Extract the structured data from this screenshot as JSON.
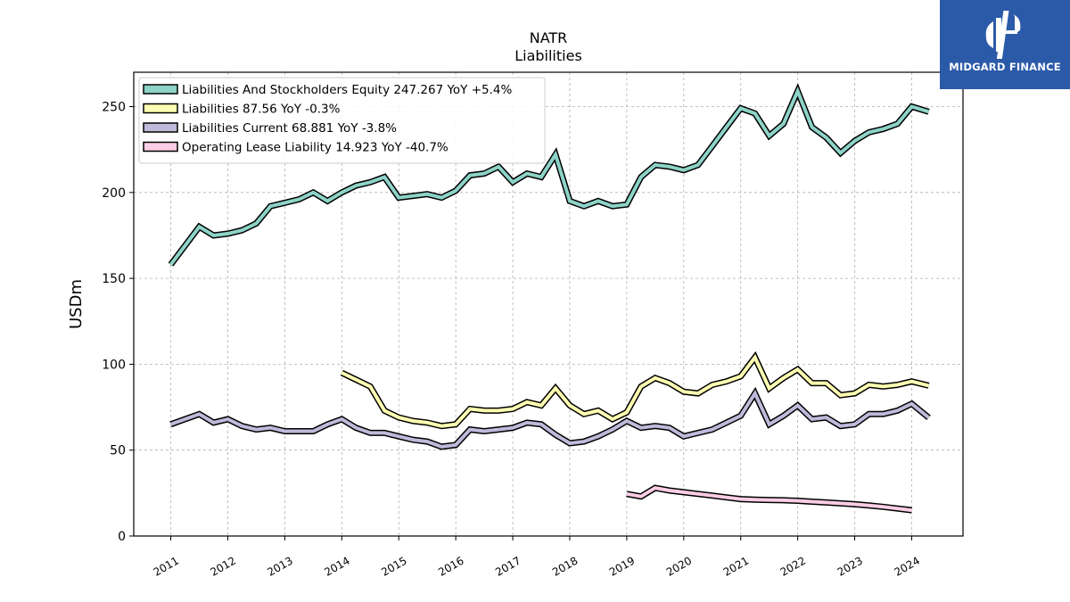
{
  "brand": {
    "name": "MIDGARD FINANCE",
    "logo_icon": "midgard-finance-logo-icon",
    "color": "#2b5aa8"
  },
  "chart_data": {
    "type": "line",
    "title": "NATR",
    "subtitle": "Liabilities",
    "ylabel": "USDm",
    "xlabel": "",
    "ylim": [
      0,
      270
    ],
    "xlim": [
      2010.35,
      2024.9
    ],
    "yticks": [
      0,
      50,
      100,
      150,
      200,
      250
    ],
    "xticks": [
      "2011",
      "2012",
      "2013",
      "2014",
      "2015",
      "2016",
      "2017",
      "2018",
      "2019",
      "2020",
      "2021",
      "2022",
      "2023",
      "2024"
    ],
    "grid": true,
    "legend_position": "top-left",
    "series": [
      {
        "name": "Liabilities And Stockholders Equity  247.267 YoY +5.4%",
        "color": "#8dd3c7",
        "x": [
          2011.0,
          2011.25,
          2011.5,
          2011.75,
          2012.0,
          2012.25,
          2012.5,
          2012.75,
          2013.0,
          2013.25,
          2013.5,
          2013.75,
          2014.0,
          2014.25,
          2014.5,
          2014.75,
          2015.0,
          2015.25,
          2015.5,
          2015.75,
          2016.0,
          2016.25,
          2016.5,
          2016.75,
          2017.0,
          2017.25,
          2017.5,
          2017.75,
          2018.0,
          2018.25,
          2018.5,
          2018.75,
          2019.0,
          2019.25,
          2019.5,
          2019.75,
          2020.0,
          2020.25,
          2020.5,
          2020.75,
          2021.0,
          2021.25,
          2021.5,
          2021.75,
          2022.0,
          2022.25,
          2022.5,
          2022.75,
          2023.0,
          2023.25,
          2023.5,
          2023.75,
          2024.0,
          2024.3
        ],
        "y": [
          158,
          169,
          180,
          175,
          176,
          178,
          182,
          192,
          194,
          196,
          200,
          195,
          200,
          204,
          206,
          209,
          197,
          198,
          199,
          197,
          201,
          210,
          211,
          215,
          206,
          211,
          209,
          222,
          195,
          192,
          195,
          192,
          193,
          209,
          216,
          215,
          213,
          216,
          227,
          238,
          249,
          246,
          233,
          240,
          259,
          238,
          232,
          223,
          230,
          235,
          237,
          240,
          250,
          247
        ]
      },
      {
        "name": "Liabilities  87.56 YoY -0.3%",
        "color": "#ffffb3",
        "x": [
          2014.0,
          2014.25,
          2014.5,
          2014.75,
          2015.0,
          2015.25,
          2015.5,
          2015.75,
          2016.0,
          2016.25,
          2016.5,
          2016.75,
          2017.0,
          2017.25,
          2017.5,
          2017.75,
          2018.0,
          2018.25,
          2018.5,
          2018.75,
          2019.0,
          2019.25,
          2019.5,
          2019.75,
          2020.0,
          2020.25,
          2020.5,
          2020.75,
          2021.0,
          2021.25,
          2021.5,
          2021.75,
          2022.0,
          2022.25,
          2022.5,
          2022.75,
          2023.0,
          2023.25,
          2023.5,
          2023.75,
          2024.0,
          2024.3
        ],
        "y": [
          95,
          91,
          87,
          73,
          69,
          67,
          66,
          64,
          65,
          74,
          73,
          73,
          74,
          78,
          76,
          86,
          76,
          71,
          73,
          68,
          72,
          87,
          92,
          89,
          84,
          83,
          88,
          90,
          93,
          104,
          86,
          92,
          97,
          89,
          89,
          82,
          83,
          88,
          87,
          88,
          90,
          87.56
        ]
      },
      {
        "name": "Liabilities Current  68.881 YoY -3.8%",
        "color": "#bebada",
        "x": [
          2011.0,
          2011.25,
          2011.5,
          2011.75,
          2012.0,
          2012.25,
          2012.5,
          2012.75,
          2013.0,
          2013.25,
          2013.5,
          2013.75,
          2014.0,
          2014.25,
          2014.5,
          2014.75,
          2015.0,
          2015.25,
          2015.5,
          2015.75,
          2016.0,
          2016.25,
          2016.5,
          2016.75,
          2017.0,
          2017.25,
          2017.5,
          2017.75,
          2018.0,
          2018.25,
          2018.5,
          2018.75,
          2019.0,
          2019.25,
          2019.5,
          2019.75,
          2020.0,
          2020.25,
          2020.5,
          2020.75,
          2021.0,
          2021.25,
          2021.5,
          2021.75,
          2022.0,
          2022.25,
          2022.5,
          2022.75,
          2023.0,
          2023.25,
          2023.5,
          2023.75,
          2024.0,
          2024.3
        ],
        "y": [
          65,
          68,
          71,
          66,
          68,
          64,
          62,
          63,
          61,
          61,
          61,
          65,
          68,
          63,
          60,
          60,
          58,
          56,
          55,
          52,
          53,
          62,
          61,
          62,
          63,
          66,
          65,
          59,
          54,
          55,
          58,
          62,
          67,
          63,
          64,
          63,
          58,
          60,
          62,
          66,
          70,
          83,
          65,
          70,
          76,
          68,
          69,
          64,
          65,
          71,
          71,
          73,
          77,
          68.881
        ]
      },
      {
        "name": "Operating Lease Liability  14.923 YoY -40.7%",
        "color": "#fccde5",
        "x": [
          2019.0,
          2019.25,
          2019.5,
          2019.75,
          2020.0,
          2020.25,
          2020.5,
          2020.75,
          2021.0,
          2021.25,
          2021.5,
          2021.75,
          2022.0,
          2022.25,
          2022.5,
          2022.75,
          2023.0,
          2023.25,
          2023.5,
          2023.75,
          2024.0
        ],
        "y": [
          24.5,
          23,
          28,
          26.5,
          25.5,
          24.5,
          23.5,
          22.5,
          21.5,
          21.2,
          21,
          20.8,
          20.5,
          20,
          19.5,
          19,
          18.5,
          17.8,
          17,
          16,
          15
        ]
      }
    ]
  }
}
